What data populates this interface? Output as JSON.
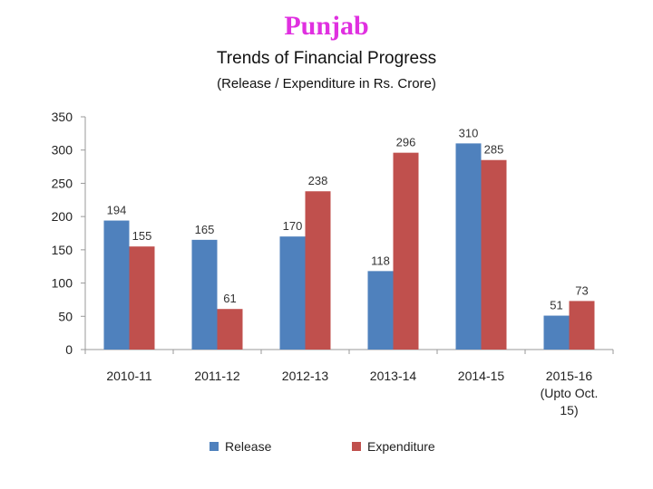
{
  "header": {
    "title": "Punjab",
    "subtitle": "Trends of Financial Progress",
    "unit_note": "(Release / Expenditure in Rs. Crore)"
  },
  "chart_data": {
    "type": "bar",
    "title": "Trends of Financial Progress",
    "categories": [
      "2010-11",
      "2011-12",
      "2012-13",
      "2013-14",
      "2014-15",
      "2015-16 (Upto Oct. 15)"
    ],
    "category_lines": [
      [
        "2010-11"
      ],
      [
        "2011-12"
      ],
      [
        "2012-13"
      ],
      [
        "2013-14"
      ],
      [
        "2014-15"
      ],
      [
        "2015-16",
        "(Upto Oct.",
        "15)"
      ]
    ],
    "series": [
      {
        "name": "Release",
        "values": [
          194,
          165,
          170,
          118,
          310,
          51
        ],
        "color": "#4f81bd"
      },
      {
        "name": "Expenditure",
        "values": [
          155,
          61,
          238,
          296,
          285,
          73
        ],
        "color": "#c0504d"
      }
    ],
    "ylim": [
      0,
      350
    ],
    "yticks": [
      0,
      50,
      100,
      150,
      200,
      250,
      300,
      350
    ],
    "grid": false,
    "legend_position": "bottom"
  }
}
